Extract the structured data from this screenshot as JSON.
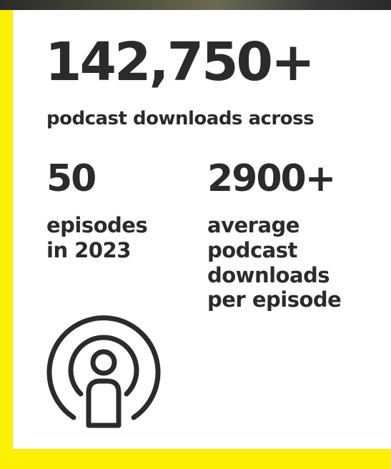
{
  "headline": {
    "number": "142,750+",
    "caption": "podcast downloads across"
  },
  "stats": [
    {
      "value": "50",
      "label": "episodes\nin 2023"
    },
    {
      "value": "2900+",
      "label": "average\npodcast\ndownloads\nper episode"
    }
  ],
  "icon": "podcast-icon",
  "colors": {
    "accent": "#fbf000",
    "text": "#2b2b2b",
    "card": "#ffffff"
  }
}
